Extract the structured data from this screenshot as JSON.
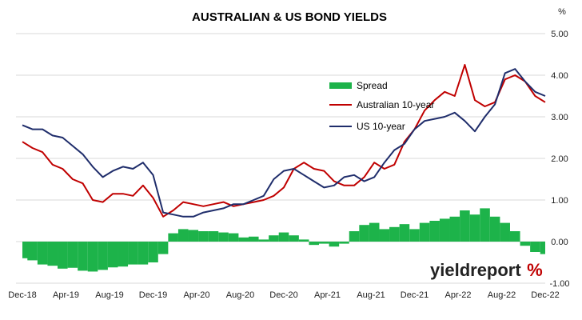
{
  "chart_data": {
    "type": "line",
    "title": "AUSTRALIAN & US BOND YIELDS",
    "y_unit": "%",
    "ylim": [
      -1.0,
      5.0
    ],
    "y_ticks": [
      "5.00",
      "4.00",
      "3.00",
      "2.00",
      "1.00",
      "0.00",
      "-1.00"
    ],
    "y_tick_values": [
      5,
      4,
      3,
      2,
      1,
      0,
      -1
    ],
    "x_tick_labels": [
      "Dec-18",
      "Apr-19",
      "Aug-19",
      "Dec-19",
      "Apr-20",
      "Aug-20",
      "Dec-20",
      "Apr-21",
      "Aug-21",
      "Dec-21",
      "Apr-22",
      "Aug-22",
      "Dec-22"
    ],
    "grid": true,
    "legend_position": "top-right",
    "colors": {
      "spread": "#1db34a",
      "australian": "#c00000",
      "us": "#1f2d6b",
      "grid": "#d9d9d9"
    },
    "series": [
      {
        "name": "Spread",
        "kind": "bar",
        "values": [
          -0.4,
          -0.45,
          -0.55,
          -0.58,
          -0.65,
          -0.63,
          -0.7,
          -0.72,
          -0.68,
          -0.62,
          -0.6,
          -0.55,
          -0.55,
          -0.5,
          -0.3,
          0.2,
          0.3,
          0.28,
          0.25,
          0.25,
          0.22,
          0.2,
          0.1,
          0.12,
          0.05,
          0.15,
          0.22,
          0.15,
          0.05,
          -0.08,
          -0.05,
          -0.12,
          -0.05,
          0.25,
          0.4,
          0.45,
          0.3,
          0.35,
          0.42,
          0.3,
          0.45,
          0.5,
          0.55,
          0.6,
          0.75,
          0.65,
          0.8,
          0.6,
          0.45,
          0.25,
          -0.1,
          -0.25,
          -0.3
        ]
      },
      {
        "name": "Australian 10-year",
        "kind": "line",
        "values": [
          2.4,
          2.25,
          2.15,
          1.85,
          1.75,
          1.5,
          1.4,
          1.0,
          0.95,
          1.15,
          1.15,
          1.1,
          1.35,
          1.05,
          0.6,
          0.75,
          0.95,
          0.9,
          0.85,
          0.9,
          0.95,
          0.85,
          0.9,
          0.95,
          1.0,
          1.1,
          1.3,
          1.75,
          1.9,
          1.75,
          1.7,
          1.45,
          1.35,
          1.35,
          1.55,
          1.9,
          1.75,
          1.85,
          2.4,
          2.7,
          3.15,
          3.4,
          3.6,
          3.5,
          4.25,
          3.4,
          3.25,
          3.35,
          3.9,
          4.0,
          3.85,
          3.5,
          3.35
        ]
      },
      {
        "name": "US 10-year",
        "kind": "line",
        "values": [
          2.8,
          2.7,
          2.7,
          2.55,
          2.5,
          2.3,
          2.1,
          1.8,
          1.55,
          1.7,
          1.8,
          1.75,
          1.9,
          1.6,
          0.7,
          0.65,
          0.6,
          0.6,
          0.7,
          0.75,
          0.8,
          0.9,
          0.9,
          1.0,
          1.1,
          1.5,
          1.7,
          1.75,
          1.6,
          1.45,
          1.3,
          1.35,
          1.55,
          1.6,
          1.45,
          1.55,
          1.9,
          2.2,
          2.35,
          2.7,
          2.9,
          2.95,
          3.0,
          3.1,
          2.9,
          2.65,
          3.0,
          3.3,
          4.05,
          4.15,
          3.85,
          3.6,
          3.5
        ]
      }
    ]
  },
  "logo": {
    "text_main": "yieldreport",
    "text_mark": "%"
  }
}
